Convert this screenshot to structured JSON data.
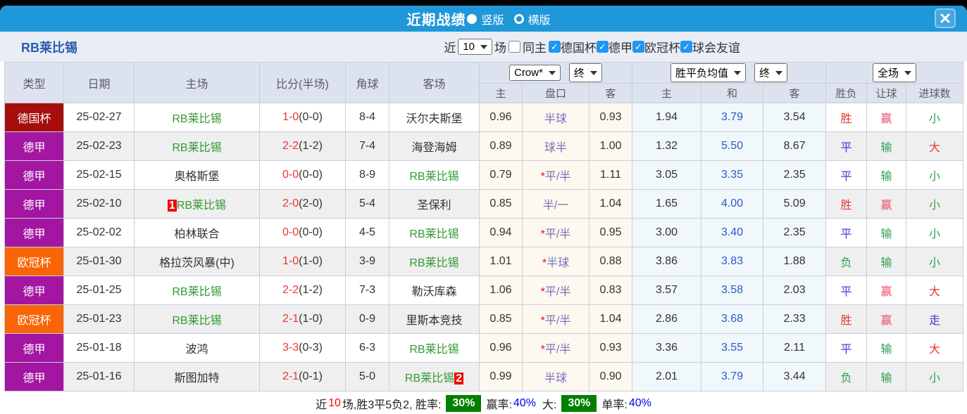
{
  "titlebar": {
    "title": "近期战绩",
    "radio_vertical": "竖版",
    "radio_horizontal": "横版"
  },
  "filterbar": {
    "team": "RB莱比锡",
    "near_label": "近",
    "matches_value": "10",
    "field_label": "场",
    "same_home_label": "同主",
    "leagues": [
      "德国杯",
      "德甲",
      "欧冠杯",
      "球会友谊"
    ]
  },
  "table": {
    "main_headers": [
      "类型",
      "日期",
      "主场",
      "比分(半场)",
      "角球",
      "客场"
    ],
    "group1_select": "Crow*",
    "group1_final": "终",
    "group1_cols": [
      "主",
      "盘口",
      "客"
    ],
    "group2_select": "胜平负均值",
    "group2_final": "终",
    "group2_cols": [
      "主",
      "和",
      "客"
    ],
    "group3_select": "全场",
    "group3_cols": [
      "胜负",
      "让球",
      "进球数"
    ],
    "rows": [
      {
        "type": "德国杯",
        "type_class": "t-dfb",
        "date": "25-02-27",
        "home": "RB莱比锡",
        "home_green": true,
        "home_badge": "",
        "score": "1-0",
        "half": "(0-0)",
        "corners": "8-4",
        "away": "沃尔夫斯堡",
        "away_green": false,
        "away_badge": "",
        "ah_home": "0.96",
        "ah_star": false,
        "ah_line": "半球",
        "ah_away": "0.93",
        "eu_home": "1.94",
        "eu_draw": "3.79",
        "eu_away": "3.54",
        "res": [
          [
            "胜",
            "red"
          ],
          [
            "赢",
            "pink"
          ],
          [
            "小",
            "green"
          ]
        ]
      },
      {
        "type": "德甲",
        "type_class": "t-bund",
        "date": "25-02-23",
        "home": "RB莱比锡",
        "home_green": true,
        "home_badge": "",
        "score": "2-2",
        "half": "(1-2)",
        "corners": "7-4",
        "away": "海登海姆",
        "away_green": false,
        "away_badge": "",
        "ah_home": "0.89",
        "ah_star": false,
        "ah_line": "球半",
        "ah_away": "1.00",
        "eu_home": "1.32",
        "eu_draw": "5.50",
        "eu_away": "8.67",
        "res": [
          [
            "平",
            "blue"
          ],
          [
            "输",
            "green"
          ],
          [
            "大",
            "red"
          ]
        ]
      },
      {
        "type": "德甲",
        "type_class": "t-bund",
        "date": "25-02-15",
        "home": "奥格斯堡",
        "home_green": false,
        "home_badge": "",
        "score": "0-0",
        "half": "(0-0)",
        "corners": "8-9",
        "away": "RB莱比锡",
        "away_green": true,
        "away_badge": "",
        "ah_home": "0.79",
        "ah_star": true,
        "ah_line": "平/半",
        "ah_away": "1.11",
        "eu_home": "3.05",
        "eu_draw": "3.35",
        "eu_away": "2.35",
        "res": [
          [
            "平",
            "blue"
          ],
          [
            "输",
            "green"
          ],
          [
            "小",
            "green"
          ]
        ]
      },
      {
        "type": "德甲",
        "type_class": "t-bund",
        "date": "25-02-10",
        "home": "RB莱比锡",
        "home_green": true,
        "home_badge": "1",
        "score": "2-0",
        "half": "(2-0)",
        "corners": "5-4",
        "away": "圣保利",
        "away_green": false,
        "away_badge": "",
        "ah_home": "0.85",
        "ah_star": false,
        "ah_line": "半/一",
        "ah_away": "1.04",
        "eu_home": "1.65",
        "eu_draw": "4.00",
        "eu_away": "5.09",
        "res": [
          [
            "胜",
            "red"
          ],
          [
            "赢",
            "pink"
          ],
          [
            "小",
            "green"
          ]
        ]
      },
      {
        "type": "德甲",
        "type_class": "t-bund",
        "date": "25-02-02",
        "home": "柏林联合",
        "home_green": false,
        "home_badge": "",
        "score": "0-0",
        "half": "(0-0)",
        "corners": "4-5",
        "away": "RB莱比锡",
        "away_green": true,
        "away_badge": "",
        "ah_home": "0.94",
        "ah_star": true,
        "ah_line": "平/半",
        "ah_away": "0.95",
        "eu_home": "3.00",
        "eu_draw": "3.40",
        "eu_away": "2.35",
        "res": [
          [
            "平",
            "blue"
          ],
          [
            "输",
            "green"
          ],
          [
            "小",
            "green"
          ]
        ]
      },
      {
        "type": "欧冠杯",
        "type_class": "t-ucl",
        "date": "25-01-30",
        "home": "格拉茨风暴(中)",
        "home_green": false,
        "home_badge": "",
        "score": "1-0",
        "half": "(1-0)",
        "corners": "3-9",
        "away": "RB莱比锡",
        "away_green": true,
        "away_badge": "",
        "ah_home": "1.01",
        "ah_star": true,
        "ah_line": "半球",
        "ah_away": "0.88",
        "eu_home": "3.86",
        "eu_draw": "3.83",
        "eu_away": "1.88",
        "res": [
          [
            "负",
            "green"
          ],
          [
            "输",
            "green"
          ],
          [
            "小",
            "green"
          ]
        ]
      },
      {
        "type": "德甲",
        "type_class": "t-bund",
        "date": "25-01-25",
        "home": "RB莱比锡",
        "home_green": true,
        "home_badge": "",
        "score": "2-2",
        "half": "(1-2)",
        "corners": "7-3",
        "away": "勒沃库森",
        "away_green": false,
        "away_badge": "",
        "ah_home": "1.06",
        "ah_star": true,
        "ah_line": "平/半",
        "ah_away": "0.83",
        "eu_home": "3.57",
        "eu_draw": "3.58",
        "eu_away": "2.03",
        "res": [
          [
            "平",
            "blue"
          ],
          [
            "赢",
            "pink"
          ],
          [
            "大",
            "red"
          ]
        ]
      },
      {
        "type": "欧冠杯",
        "type_class": "t-ucl",
        "date": "25-01-23",
        "home": "RB莱比锡",
        "home_green": true,
        "home_badge": "",
        "score": "2-1",
        "half": "(1-0)",
        "corners": "0-9",
        "away": "里斯本竞技",
        "away_green": false,
        "away_badge": "",
        "ah_home": "0.85",
        "ah_star": true,
        "ah_line": "平/半",
        "ah_away": "1.04",
        "eu_home": "2.86",
        "eu_draw": "3.68",
        "eu_away": "2.33",
        "res": [
          [
            "胜",
            "red"
          ],
          [
            "赢",
            "pink"
          ],
          [
            "走",
            "blue"
          ]
        ]
      },
      {
        "type": "德甲",
        "type_class": "t-bund",
        "date": "25-01-18",
        "home": "波鸿",
        "home_green": false,
        "home_badge": "",
        "score": "3-3",
        "half": "(0-3)",
        "corners": "6-3",
        "away": "RB莱比锡",
        "away_green": true,
        "away_badge": "",
        "ah_home": "0.96",
        "ah_star": true,
        "ah_line": "平/半",
        "ah_away": "0.93",
        "eu_home": "3.36",
        "eu_draw": "3.55",
        "eu_away": "2.11",
        "res": [
          [
            "平",
            "blue"
          ],
          [
            "输",
            "green"
          ],
          [
            "大",
            "red"
          ]
        ]
      },
      {
        "type": "德甲",
        "type_class": "t-bund",
        "date": "25-01-16",
        "home": "斯图加特",
        "home_green": false,
        "home_badge": "",
        "score": "2-1",
        "half": "(0-1)",
        "corners": "5-0",
        "away": "RB莱比锡",
        "away_green": true,
        "away_badge": "2",
        "ah_home": "0.99",
        "ah_star": false,
        "ah_line": "半球",
        "ah_away": "0.90",
        "eu_home": "2.01",
        "eu_draw": "3.79",
        "eu_away": "3.44",
        "res": [
          [
            "负",
            "green"
          ],
          [
            "输",
            "green"
          ],
          [
            "小",
            "green"
          ]
        ]
      }
    ]
  },
  "summary": {
    "prefix": "近",
    "count": "10",
    "mid": "场,胜3平5负2, 胜率:",
    "win_rate": "30%",
    "yield_label": "赢率:",
    "yield_rate": "40%",
    "big_label": "大:",
    "big_rate": "30%",
    "single_label": "单率:",
    "single_rate": "40%"
  },
  "colors": {
    "header_blue": "#1f97d8",
    "dfb_pokal": "#a60d0d",
    "bundesliga": "#a216a2",
    "ucl": "#f96506",
    "rate_badge_green": "#008000"
  }
}
